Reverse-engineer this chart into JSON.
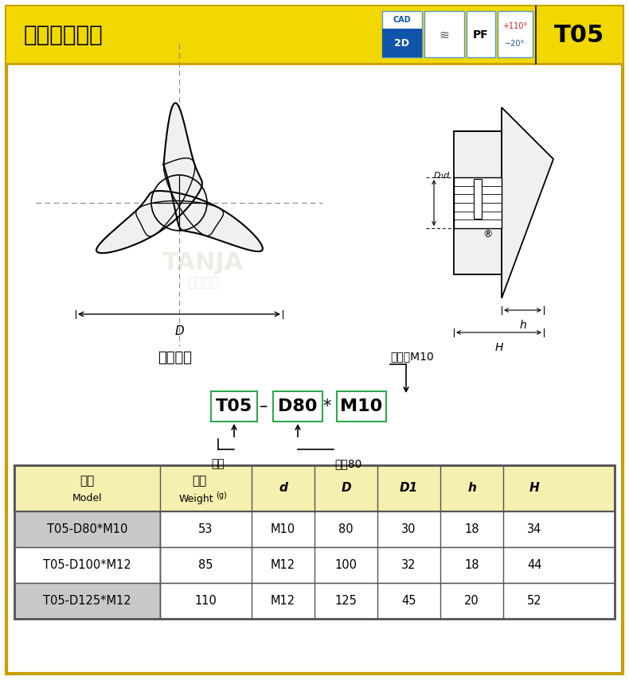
{
  "title_text": "三角箭形把手",
  "model_code": "T05",
  "bg_color": "#ffffff",
  "header_yellow": "#f0d800",
  "header_border": "#c8a000",
  "table_header_bg": "#f5f0b0",
  "table_row_gray": "#c8c8c8",
  "table_row_white": "#ffffff",
  "table_border": "#555555",
  "green_box": "#2ea84f",
  "table_rows": [
    [
      "T05-D80*M10",
      "53",
      "M10",
      "80",
      "30",
      "18",
      "34"
    ],
    [
      "T05-D100*M12",
      "85",
      "M12",
      "100",
      "32",
      "18",
      "44"
    ],
    [
      "T05-D125*M12",
      "110",
      "M12",
      "125",
      "45",
      "20",
      "52"
    ]
  ],
  "model_example_label": "型号例：",
  "model_inner_thread": "内螺纹M10",
  "model_label1": "型号",
  "model_label2": "外径80",
  "tanja_text": "TANJA",
  "tanja_sub": "天甲工业",
  "watermark_color": "#ddddcc"
}
